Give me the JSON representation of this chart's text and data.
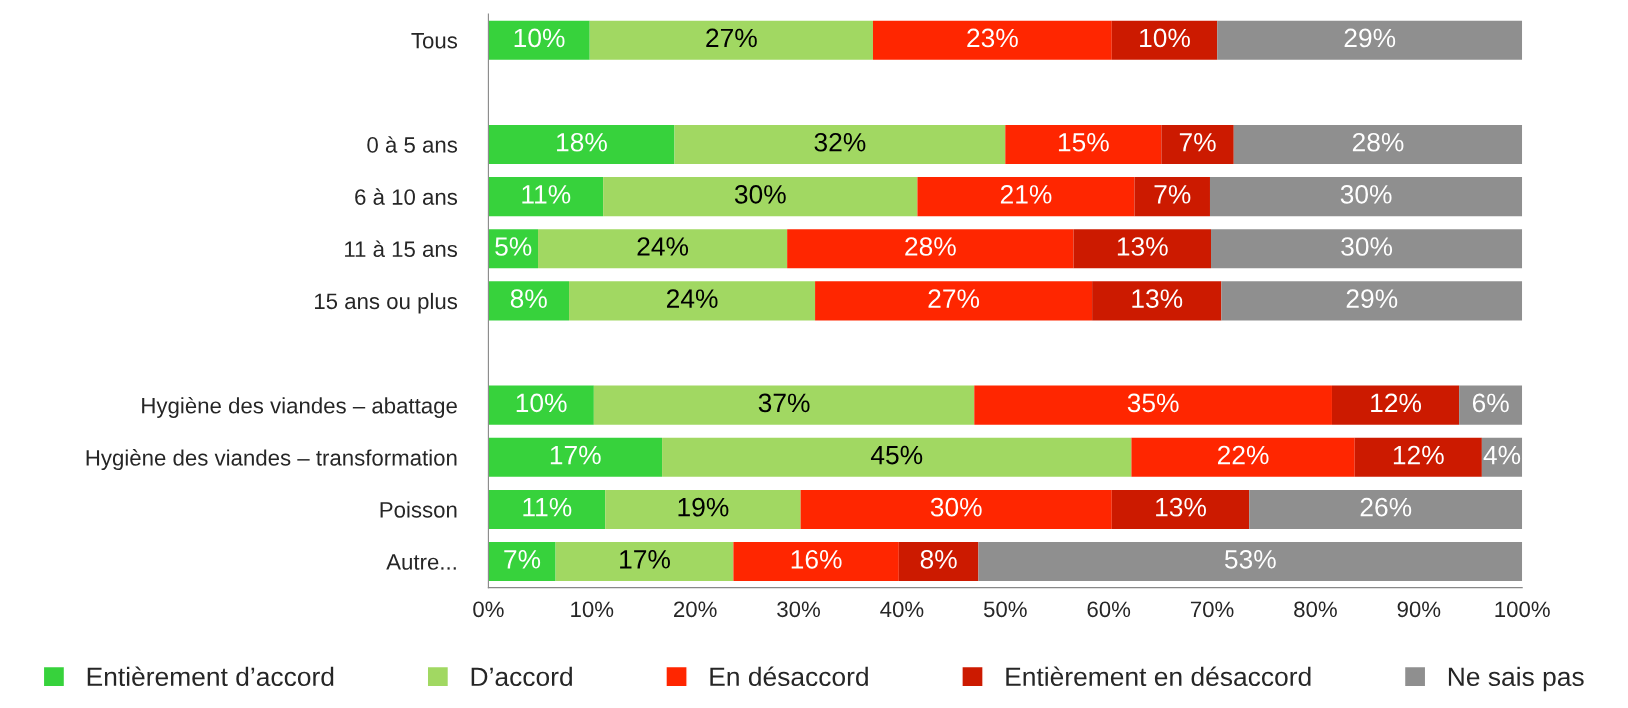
{
  "chart_data": {
    "type": "bar",
    "orientation": "horizontal",
    "stacked": true,
    "categories": [
      "Tous",
      null,
      "0 à 5 ans",
      "6 à 10 ans",
      "11 à 15 ans",
      "15 ans ou plus",
      null,
      "Hygiène des viandes – abattage",
      "Hygiène des viandes – transformation",
      "Poisson",
      "Autre..."
    ],
    "series": [
      {
        "name": "Entièrement d’accord",
        "color": "#37d23c",
        "values": [
          9.8,
          null,
          18.0,
          11.1,
          4.8,
          7.8,
          null,
          10.2,
          16.8,
          11.3,
          6.5
        ],
        "value_labels": [
          "10%",
          null,
          "18%",
          "11%",
          "5%",
          "8%",
          null,
          "10%",
          "17%",
          "11%",
          "7%"
        ]
      },
      {
        "name": "D’accord",
        "color": "#a1d862",
        "values": [
          27.4,
          null,
          32.0,
          30.4,
          24.1,
          23.8,
          null,
          36.8,
          45.4,
          18.9,
          17.2
        ],
        "value_labels": [
          "27%",
          null,
          "32%",
          "30%",
          "24%",
          "24%",
          null,
          "37%",
          "45%",
          "19%",
          "17%"
        ]
      },
      {
        "name": "En désaccord",
        "color": "#ff2600",
        "values": [
          23.1,
          null,
          15.1,
          21.0,
          27.7,
          26.8,
          null,
          34.6,
          21.6,
          30.1,
          16.0
        ],
        "value_labels": [
          "23%",
          null,
          "15%",
          "21%",
          "28%",
          "27%",
          null,
          "35%",
          "22%",
          "30%",
          "16%"
        ]
      },
      {
        "name": "Entièrement en désaccord",
        "color": "#cc1a00",
        "values": [
          10.2,
          null,
          7.0,
          7.3,
          13.3,
          12.5,
          null,
          12.3,
          12.3,
          13.3,
          7.7
        ],
        "value_labels": [
          "10%",
          null,
          "7%",
          "7%",
          "13%",
          "13%",
          null,
          "12%",
          "12%",
          "13%",
          "8%"
        ]
      },
      {
        "name": "Ne sais pas",
        "color": "#8f8f8f",
        "values": [
          29.5,
          null,
          27.9,
          30.2,
          30.1,
          29.1,
          null,
          6.1,
          3.9,
          26.4,
          52.6
        ],
        "value_labels": [
          "29%",
          null,
          "28%",
          "30%",
          "30%",
          "29%",
          null,
          "6%",
          "4%",
          "26%",
          "53%"
        ]
      }
    ],
    "xlim": [
      0,
      100
    ],
    "xticks": [
      {
        "value": 0,
        "label": "0%"
      },
      {
        "value": 10,
        "label": "10%"
      },
      {
        "value": 20,
        "label": "20%"
      },
      {
        "value": 30,
        "label": "30%"
      },
      {
        "value": 40,
        "label": "40%"
      },
      {
        "value": 50,
        "label": "50%"
      },
      {
        "value": 60,
        "label": "60%"
      },
      {
        "value": 70,
        "label": "70%"
      },
      {
        "value": 80,
        "label": "80%"
      },
      {
        "value": 90,
        "label": "90%"
      },
      {
        "value": 100,
        "label": "100%"
      }
    ],
    "legend": "bottom",
    "grid": false
  }
}
